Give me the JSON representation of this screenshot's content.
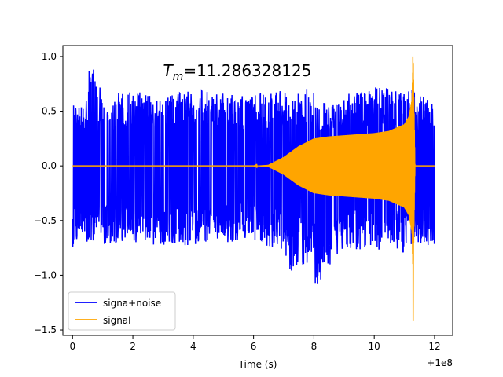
{
  "chart_data": {
    "type": "line",
    "title": "",
    "annotation": {
      "prefix": "T",
      "subscript": "m",
      "value": "=11.286328125",
      "x": 3.0,
      "y": 0.82
    },
    "xlabel": "Time (s)",
    "ylabel": "",
    "x_offset_label": "+1e8",
    "xlim": [
      -0.32,
      12.6
    ],
    "ylim": [
      -1.55,
      1.1
    ],
    "xticks": [
      0,
      2,
      4,
      6,
      8,
      10,
      12
    ],
    "xtick_labels": [
      "0",
      "2",
      "4",
      "6",
      "8",
      "10",
      "12"
    ],
    "yticks": [
      -1.5,
      -1.0,
      -0.5,
      0.0,
      0.5,
      1.0
    ],
    "ytick_labels": [
      "−1.5",
      "−1.0",
      "−0.5",
      "0.0",
      "0.5",
      "1.0"
    ],
    "grid": false,
    "legend": "lower-left",
    "series": [
      {
        "name": "signa+noise",
        "color": "#0000ff",
        "description": "dense noisy band spanning x 0 to 12, upper envelope ~0.5-0.7 with spikes, lower ~-0.5 to -0.8",
        "x": [
          0.0,
          0.5,
          0.55,
          1.0,
          2.0,
          3.0,
          4.0,
          5.0,
          6.0,
          7.0,
          7.2,
          8.0,
          8.05,
          9.0,
          10.0,
          11.0,
          11.29,
          11.35,
          12.0
        ],
        "ymax": [
          0.55,
          0.6,
          1.0,
          0.65,
          0.68,
          0.65,
          0.7,
          0.66,
          0.65,
          0.72,
          0.6,
          0.78,
          0.6,
          0.65,
          0.72,
          0.7,
          0.75,
          0.65,
          0.6
        ],
        "ymin": [
          -0.75,
          -0.7,
          -0.7,
          -0.72,
          -0.7,
          -0.75,
          -0.72,
          -0.7,
          -0.68,
          -0.8,
          -1.02,
          -0.85,
          -1.15,
          -0.75,
          -0.78,
          -0.8,
          -0.72,
          -0.7,
          -0.75
        ]
      },
      {
        "name": "signal",
        "color": "#ffa500",
        "description": "chirp: ~0 until ~6.5, amplitude grows, then spike at merger time",
        "x": [
          0.0,
          6.0,
          6.5,
          7.0,
          7.5,
          8.0,
          8.5,
          9.0,
          9.5,
          10.0,
          10.5,
          11.0,
          11.15,
          11.25,
          11.29,
          11.32,
          11.35,
          12.0
        ],
        "amp": [
          0.0,
          0.0,
          0.01,
          0.08,
          0.18,
          0.25,
          0.27,
          0.28,
          0.29,
          0.3,
          0.32,
          0.38,
          0.45,
          0.6,
          1.0,
          0.5,
          0.0,
          0.0
        ],
        "spike": {
          "x": 11.29,
          "ymax": 1.0,
          "ymin": -1.42
        }
      }
    ]
  }
}
